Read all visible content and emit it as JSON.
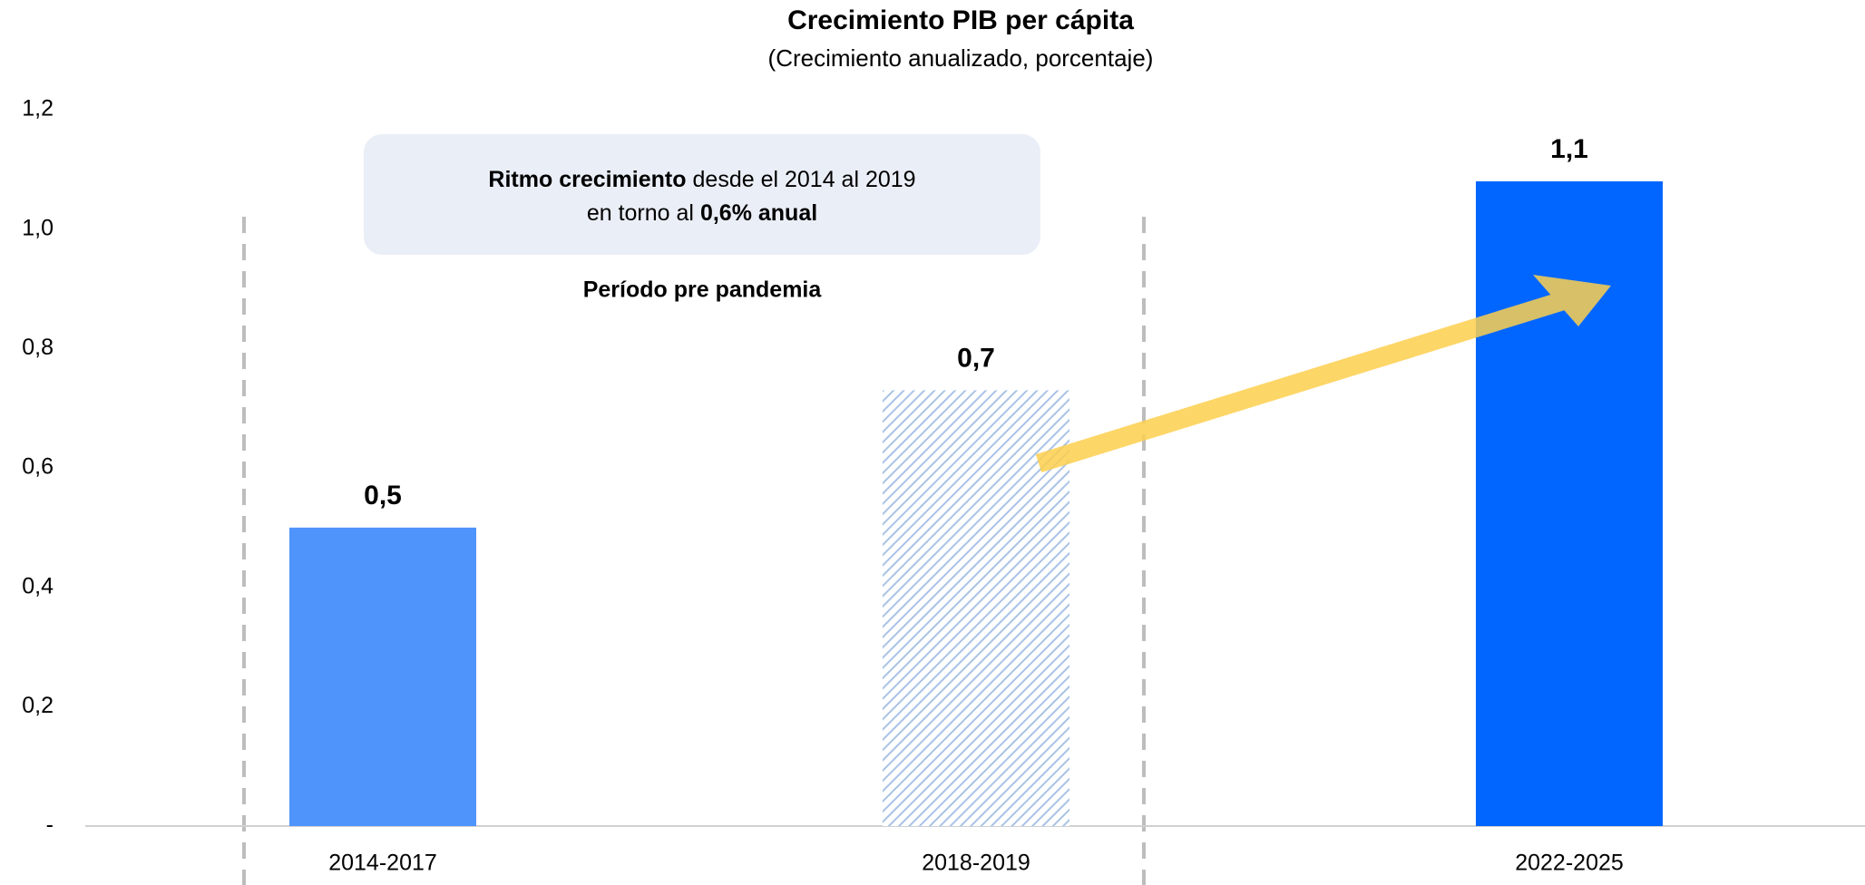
{
  "chart_data": {
    "type": "bar",
    "title": "Crecimiento PIB per cápita",
    "subtitle": "(Crecimiento anualizado, porcentaje)",
    "categories": [
      "2014-2017",
      "2018-2019",
      "2022-2025"
    ],
    "values": [
      0.5,
      0.73,
      1.08
    ],
    "value_labels": [
      "0,5",
      "0,7",
      "1,1"
    ],
    "colors": [
      "#4f94fb",
      "#a9c3e6",
      "#0066ff"
    ],
    "hatched": [
      false,
      true,
      false
    ],
    "ylim": [
      0,
      1.2
    ],
    "yticks": [
      {
        "value": 0,
        "label": "-"
      },
      {
        "value": 0.2,
        "label": "0,2"
      },
      {
        "value": 0.4,
        "label": "0,4"
      },
      {
        "value": 0.6,
        "label": "0,6"
      },
      {
        "value": 0.8,
        "label": "0,8"
      },
      {
        "value": 1.0,
        "label": "1,0"
      },
      {
        "value": 1.2,
        "label": "1,2"
      }
    ],
    "annotation": {
      "bold1": "Ritmo crecimiento",
      "text1": "desde el 2014 al 2019",
      "text2": "en torno al",
      "bold2": "0,6% anual",
      "period": "Período pre pandemia"
    }
  }
}
